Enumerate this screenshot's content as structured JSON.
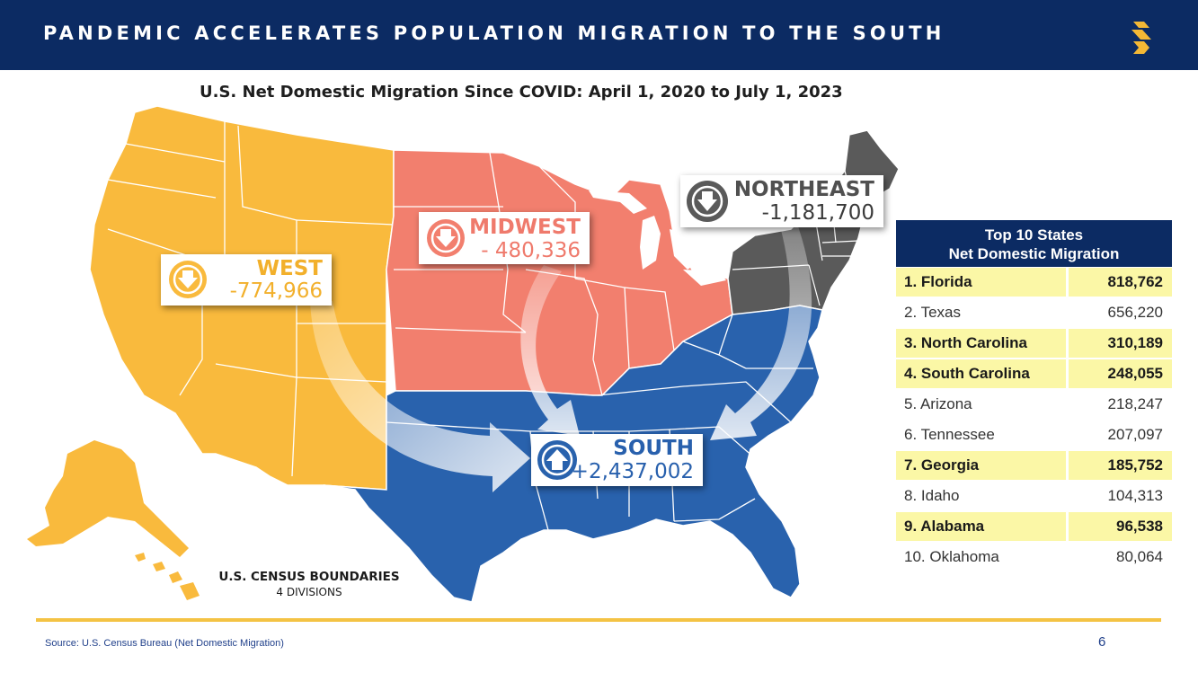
{
  "header": {
    "title": "PANDEMIC ACCELERATES POPULATION MIGRATION TO THE SOUTH",
    "logo_icon": "s-logo-icon"
  },
  "map": {
    "title": "U.S. Net Domestic Migration Since COVID: April 1, 2020 to July 1, 2023",
    "regions": [
      {
        "key": "west",
        "name": "WEST",
        "value": "-774,966",
        "color": "#f9ba3d",
        "icon": "down-arrow-icon"
      },
      {
        "key": "midwest",
        "name": "MIDWEST",
        "value": "- 480,336",
        "color": "#f27f6e",
        "icon": "down-arrow-icon"
      },
      {
        "key": "northeast",
        "name": "NORTHEAST",
        "value": "-1,181,700",
        "color": "#5a5a5a",
        "icon": "down-arrow-icon"
      },
      {
        "key": "south",
        "name": "SOUTH",
        "value": "+2,437,002",
        "color": "#2962ad",
        "icon": "up-arrow-icon"
      }
    ],
    "census_label": "U.S. CENSUS BOUNDARIES",
    "census_sub": "4 DIVISIONS"
  },
  "table": {
    "title_line1": "Top 10 States",
    "title_line2": "Net Domestic Migration",
    "rows": [
      {
        "label": "1. Florida",
        "value": "818,762",
        "highlight": true
      },
      {
        "label": "2. Texas",
        "value": "656,220",
        "highlight": false
      },
      {
        "label": "3. North Carolina",
        "value": "310,189",
        "highlight": true
      },
      {
        "label": "4. South Carolina",
        "value": "248,055",
        "highlight": true
      },
      {
        "label": "5. Arizona",
        "value": "218,247",
        "highlight": false
      },
      {
        "label": "6. Tennessee",
        "value": "207,097",
        "highlight": false
      },
      {
        "label": "7. Georgia",
        "value": "185,752",
        "highlight": true
      },
      {
        "label": "8. Idaho",
        "value": "104,313",
        "highlight": false
      },
      {
        "label": "9. Alabama",
        "value": "96,538",
        "highlight": true
      },
      {
        "label": "10. Oklahoma",
        "value": "80,064",
        "highlight": false
      }
    ]
  },
  "footer": {
    "source": "Source: U.S. Census Bureau (Net Domestic Migration)",
    "page": "6"
  }
}
